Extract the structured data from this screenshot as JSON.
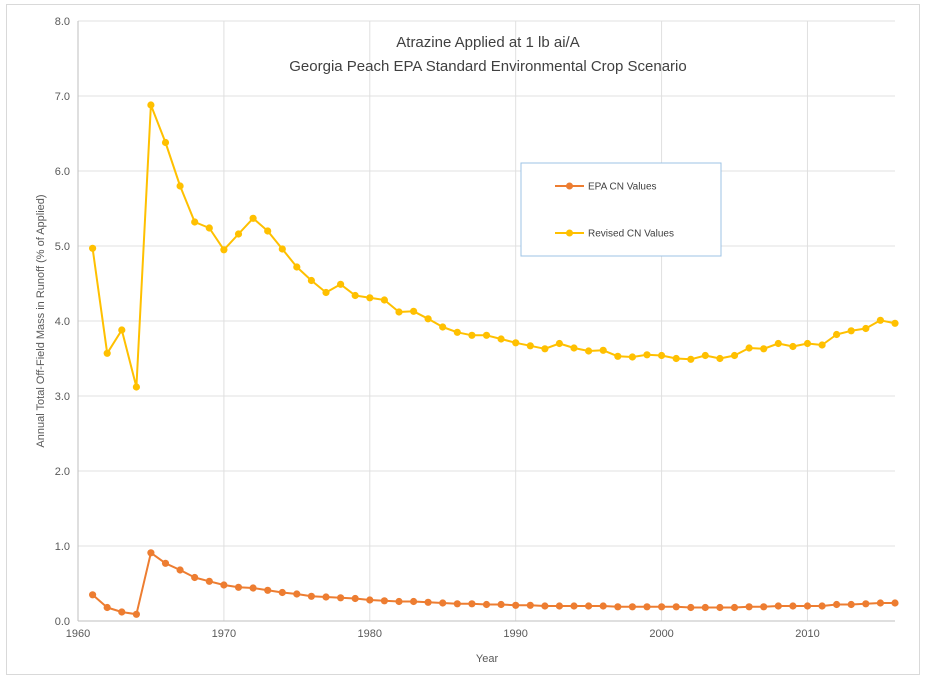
{
  "chart_data": {
    "type": "line",
    "title": "Atrazine Applied at 1 lb ai/A",
    "subtitle": "Georgia Peach EPA Standard Environmental Crop Scenario",
    "xlabel": "Year",
    "ylabel": "Annual Total Off-Field Mass in Runoff (% of Applied)",
    "xlim": [
      1960,
      2016
    ],
    "ylim": [
      0,
      8
    ],
    "x_ticks": [
      1960,
      1970,
      1980,
      1990,
      2000,
      2010
    ],
    "y_ticks": [
      "0.0",
      "1.0",
      "2.0",
      "3.0",
      "4.0",
      "5.0",
      "6.0",
      "7.0",
      "8.0"
    ],
    "grid": true,
    "legend_position": "right-center",
    "x": [
      1961,
      1962,
      1963,
      1964,
      1965,
      1966,
      1967,
      1968,
      1969,
      1970,
      1971,
      1972,
      1973,
      1974,
      1975,
      1976,
      1977,
      1978,
      1979,
      1980,
      1981,
      1982,
      1983,
      1984,
      1985,
      1986,
      1987,
      1988,
      1989,
      1990,
      1991,
      1992,
      1993,
      1994,
      1995,
      1996,
      1997,
      1998,
      1999,
      2000,
      2001,
      2002,
      2003,
      2004,
      2005,
      2006,
      2007,
      2008,
      2009,
      2010,
      2011,
      2012,
      2013,
      2014,
      2015,
      2016
    ],
    "series": [
      {
        "name": "EPA CN Values",
        "color": "#ED7D31",
        "values": [
          0.35,
          0.18,
          0.12,
          0.09,
          0.91,
          0.77,
          0.68,
          0.58,
          0.53,
          0.48,
          0.45,
          0.44,
          0.41,
          0.38,
          0.36,
          0.33,
          0.32,
          0.31,
          0.3,
          0.28,
          0.27,
          0.26,
          0.26,
          0.25,
          0.24,
          0.23,
          0.23,
          0.22,
          0.22,
          0.21,
          0.21,
          0.2,
          0.2,
          0.2,
          0.2,
          0.2,
          0.19,
          0.19,
          0.19,
          0.19,
          0.19,
          0.18,
          0.18,
          0.18,
          0.18,
          0.19,
          0.19,
          0.2,
          0.2,
          0.2,
          0.2,
          0.22,
          0.22,
          0.23,
          0.24,
          0.24
        ]
      },
      {
        "name": "Revised CN Values",
        "color": "#FFC000",
        "values": [
          4.97,
          3.57,
          3.88,
          3.12,
          6.88,
          6.38,
          5.8,
          5.32,
          5.24,
          4.95,
          5.16,
          5.37,
          5.2,
          4.96,
          4.72,
          4.54,
          4.38,
          4.49,
          4.34,
          4.31,
          4.28,
          4.12,
          4.13,
          4.03,
          3.92,
          3.85,
          3.81,
          3.81,
          3.76,
          3.71,
          3.67,
          3.63,
          3.7,
          3.64,
          3.6,
          3.61,
          3.53,
          3.52,
          3.55,
          3.54,
          3.5,
          3.49,
          3.54,
          3.5,
          3.54,
          3.64,
          3.63,
          3.7,
          3.66,
          3.7,
          3.68,
          3.82,
          3.87,
          3.9,
          4.01,
          3.97
        ]
      }
    ]
  }
}
